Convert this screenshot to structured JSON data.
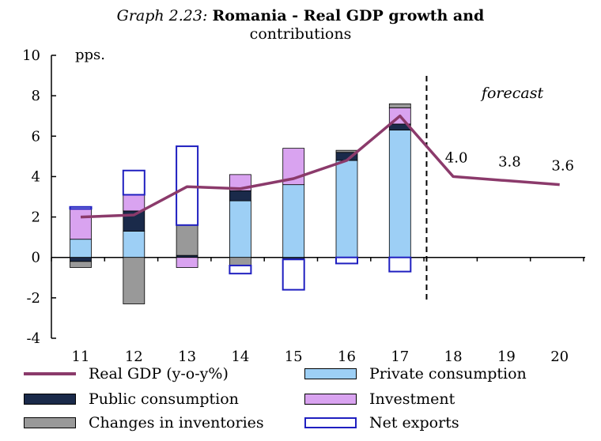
{
  "title": {
    "number": "Graph 2.23:",
    "text_line1": "Romania - Real GDP growth and",
    "text_line2": "contributions"
  },
  "chart_data": {
    "type": "bar",
    "subtype": "stacked-bar-with-line",
    "unit_label": "pps.",
    "annotation": "forecast",
    "categories": [
      "11",
      "12",
      "13",
      "14",
      "15",
      "16",
      "17",
      "18",
      "19",
      "20"
    ],
    "ylim": [
      -4,
      10
    ],
    "yticks": [
      -4,
      -2,
      0,
      2,
      4,
      6,
      8,
      10
    ],
    "forecast_start_after": "17",
    "series": [
      {
        "name": "Private consumption",
        "kind": "bar",
        "color": "#9dcff5",
        "values": [
          0.9,
          1.3,
          0.0,
          2.8,
          3.6,
          4.8,
          6.3,
          null,
          null,
          null
        ]
      },
      {
        "name": "Public consumption",
        "kind": "bar",
        "color": "#1a2a4a",
        "values": [
          -0.2,
          1.0,
          0.1,
          0.5,
          -0.1,
          0.4,
          0.3,
          null,
          null,
          null
        ]
      },
      {
        "name": "Investment",
        "kind": "bar",
        "color": "#d9a3f0",
        "values": [
          1.5,
          0.8,
          -0.5,
          0.8,
          1.8,
          0.0,
          0.8,
          null,
          null,
          null
        ]
      },
      {
        "name": "Changes in inventories",
        "kind": "bar",
        "color": "#999999",
        "values": [
          -0.3,
          -2.3,
          1.5,
          -0.4,
          0.0,
          0.1,
          0.2,
          null,
          null,
          null
        ]
      },
      {
        "name": "Net exports",
        "kind": "bar",
        "color": "#1f1fc0",
        "values": [
          0.1,
          1.2,
          3.9,
          -0.4,
          -1.5,
          -0.3,
          -0.7,
          null,
          null,
          null
        ]
      },
      {
        "name": "Real GDP (y-o-y%)",
        "kind": "line",
        "color": "#8b3a6b",
        "values": [
          2.0,
          2.1,
          3.5,
          3.4,
          3.9,
          4.8,
          7.0,
          4.0,
          3.8,
          3.6
        ]
      }
    ],
    "data_labels": [
      {
        "category": "18",
        "text": "4.0"
      },
      {
        "category": "19",
        "text": "3.8"
      },
      {
        "category": "20",
        "text": "3.6"
      }
    ]
  },
  "legend": [
    {
      "label": "Real GDP (y-o-y%)",
      "style": "line",
      "color": "#8b3a6b"
    },
    {
      "label": "Private consumption",
      "style": "fill",
      "color": "#9dcff5"
    },
    {
      "label": "Public consumption",
      "style": "fill",
      "color": "#1a2a4a"
    },
    {
      "label": "Investment",
      "style": "fill",
      "color": "#d9a3f0"
    },
    {
      "label": "Changes in inventories",
      "style": "fill",
      "color": "#999999"
    },
    {
      "label": "Net exports",
      "style": "outline",
      "color": "#1f1fc0"
    }
  ]
}
